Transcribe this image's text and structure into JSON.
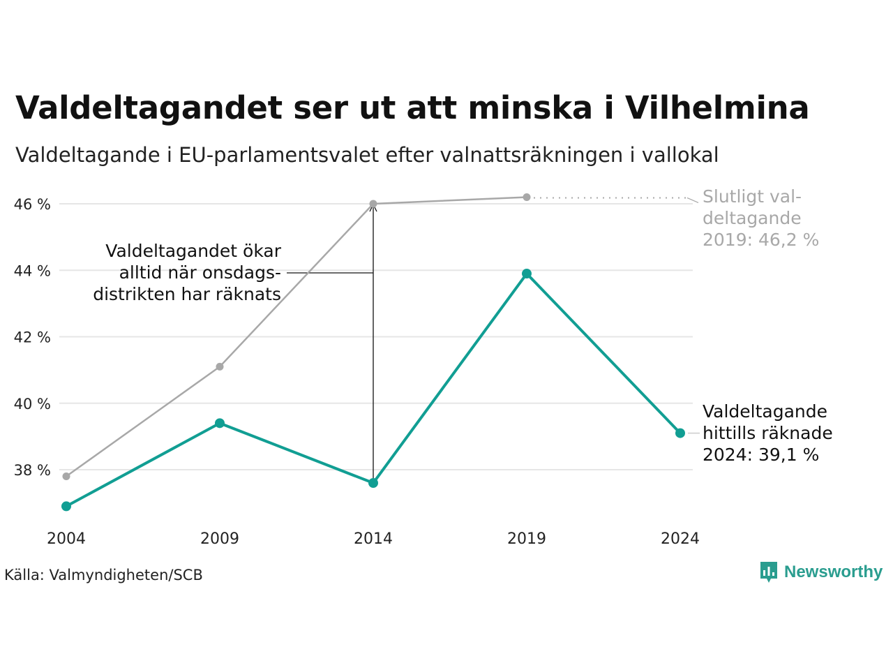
{
  "title": "Valdeltagandet ser ut att minska i Vilhelmina",
  "subtitle": "Valdeltagande i EU-parlamentsvalet efter valnattsräkningen i vallokal",
  "source": "Källa: Valmyndigheten/SCB",
  "brand": "Newsworthy",
  "colors": {
    "counted": "#119e93",
    "final": "#a8a8a8",
    "grid": "#e6e6e6",
    "annotation": "#111111"
  },
  "chart_data": {
    "type": "line",
    "x": [
      2004,
      2009,
      2014,
      2019,
      2024
    ],
    "x_tick_labels": [
      "2004",
      "2009",
      "2014",
      "2019",
      "2024"
    ],
    "y_ticks": [
      38,
      40,
      42,
      44,
      46
    ],
    "y_tick_labels": [
      "38 %",
      "40 %",
      "42 %",
      "44 %",
      "46 %"
    ],
    "ylim": [
      36.5,
      46.5
    ],
    "grid": "horizontal",
    "series": [
      {
        "key": "final",
        "x": [
          2004,
          2009,
          2014,
          2019
        ],
        "values": [
          37.8,
          41.1,
          46.0,
          46.2
        ]
      },
      {
        "key": "counted",
        "x": [
          2004,
          2009,
          2014,
          2019,
          2024
        ],
        "values": [
          36.9,
          39.4,
          37.6,
          43.9,
          39.1
        ]
      }
    ],
    "annotations": {
      "final_label": [
        "Slutligt val-",
        "deltagande",
        "2019: 46,2 %"
      ],
      "counted_label": [
        "Valdeltagande",
        "hittills räknade",
        "2024: 39,1 %"
      ],
      "note": [
        "Valdeltagandet ökar",
        "alltid när onsdags-",
        "distrikten har räknats"
      ]
    }
  }
}
